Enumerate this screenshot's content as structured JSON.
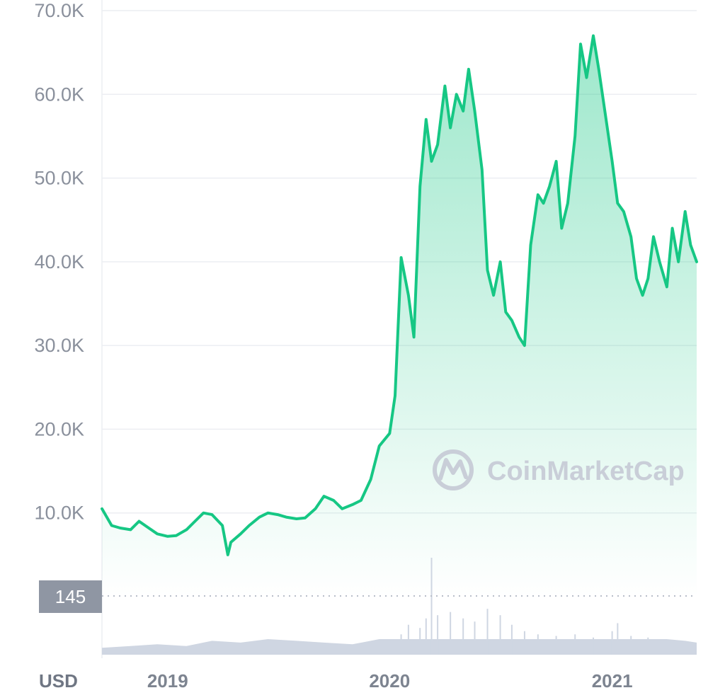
{
  "chart_data": {
    "type": "area",
    "currency_label": "USD",
    "watermark": "CoinMarketCap",
    "volume_marker_label": "145",
    "line_color": "#16c784",
    "volume_color": "#cfd6e2",
    "y_ticks": [
      "10.0K",
      "20.0K",
      "30.0K",
      "40.0K",
      "50.0K",
      "60.0K",
      "70.0K"
    ],
    "y_tick_values": [
      10000,
      20000,
      30000,
      40000,
      50000,
      60000,
      70000
    ],
    "ylim": [
      0,
      70000
    ],
    "x_ticks": [
      "2019",
      "2020",
      "2021"
    ],
    "x_tick_values": [
      "2019-01-01",
      "2020-01-01",
      "2021-01-01"
    ],
    "xlim": [
      "2018-09-15",
      "2021-05-20"
    ],
    "grid": true,
    "series": [
      {
        "x": [
          "2018-09-15",
          "2018-10-01",
          "2018-10-15",
          "2018-11-01",
          "2018-11-15",
          "2018-12-01",
          "2018-12-15",
          "2019-01-01",
          "2019-01-15",
          "2019-02-01",
          "2019-02-15",
          "2019-03-01",
          "2019-03-15",
          "2019-04-01",
          "2019-04-10",
          "2019-04-15",
          "2019-05-01",
          "2019-05-15",
          "2019-06-01",
          "2019-06-15",
          "2019-07-01",
          "2019-07-15",
          "2019-08-01",
          "2019-08-15",
          "2019-09-01",
          "2019-09-15",
          "2019-10-01",
          "2019-10-15",
          "2019-11-01",
          "2019-11-15",
          "2019-12-01",
          "2019-12-15",
          "2020-01-01",
          "2020-01-10",
          "2020-01-20",
          "2020-02-01",
          "2020-02-10",
          "2020-02-20",
          "2020-03-01",
          "2020-03-10",
          "2020-03-20",
          "2020-04-01",
          "2020-04-10",
          "2020-04-20",
          "2020-05-01",
          "2020-05-10",
          "2020-05-20",
          "2020-06-01",
          "2020-06-10",
          "2020-06-20",
          "2020-07-01",
          "2020-07-10",
          "2020-07-20",
          "2020-08-01",
          "2020-08-10",
          "2020-08-20",
          "2020-09-01",
          "2020-09-10",
          "2020-09-20",
          "2020-10-01",
          "2020-10-10",
          "2020-10-20",
          "2020-11-01",
          "2020-11-10",
          "2020-11-20",
          "2020-12-01",
          "2020-12-10",
          "2020-12-20",
          "2021-01-01",
          "2021-01-10",
          "2021-01-20",
          "2021-02-01",
          "2021-02-10",
          "2021-02-20",
          "2021-03-01",
          "2021-03-10",
          "2021-03-20",
          "2021-04-01",
          "2021-04-10",
          "2021-04-20",
          "2021-05-01",
          "2021-05-10",
          "2021-05-20"
        ],
        "y": [
          10500,
          8500,
          8200,
          8000,
          9000,
          8200,
          7500,
          7200,
          7300,
          8000,
          9000,
          10000,
          9800,
          8500,
          5000,
          6500,
          7500,
          8500,
          9500,
          10000,
          9800,
          9500,
          9300,
          9400,
          10500,
          12000,
          11500,
          10500,
          11000,
          11500,
          14000,
          18000,
          19500,
          24000,
          40500,
          36000,
          31000,
          49000,
          57000,
          52000,
          54000,
          61000,
          56000,
          60000,
          58000,
          63000,
          58000,
          51000,
          39000,
          36000,
          40000,
          34000,
          33000,
          31000,
          30000,
          42000,
          48000,
          47000,
          49000,
          52000,
          44000,
          47000,
          55000,
          66000,
          62000,
          67000,
          63000,
          58000,
          52000,
          47000,
          46000,
          43000,
          38000,
          36000,
          38000,
          43000,
          40000,
          37000,
          44000,
          40000,
          46000,
          42000,
          40000
        ]
      }
    ],
    "volume": {
      "x": [
        "2018-09-15",
        "2018-11-01",
        "2018-12-15",
        "2019-02-01",
        "2019-03-15",
        "2019-05-01",
        "2019-06-15",
        "2019-08-01",
        "2019-09-15",
        "2019-11-01",
        "2019-12-15",
        "2020-01-20",
        "2020-02-01",
        "2020-02-20",
        "2020-03-01",
        "2020-03-10",
        "2020-03-20",
        "2020-04-10",
        "2020-05-01",
        "2020-05-20",
        "2020-06-10",
        "2020-07-01",
        "2020-07-20",
        "2020-08-10",
        "2020-09-01",
        "2020-10-01",
        "2020-11-01",
        "2020-12-01",
        "2021-01-01",
        "2021-01-10",
        "2021-02-01",
        "2021-03-01",
        "2021-04-01",
        "2021-05-01",
        "2021-05-20"
      ],
      "y": [
        20,
        25,
        30,
        25,
        40,
        35,
        45,
        40,
        35,
        30,
        45,
        60,
        90,
        80,
        110,
        300,
        120,
        130,
        110,
        100,
        140,
        120,
        90,
        70,
        60,
        55,
        60,
        50,
        70,
        95,
        55,
        50,
        45,
        40,
        35
      ]
    }
  }
}
